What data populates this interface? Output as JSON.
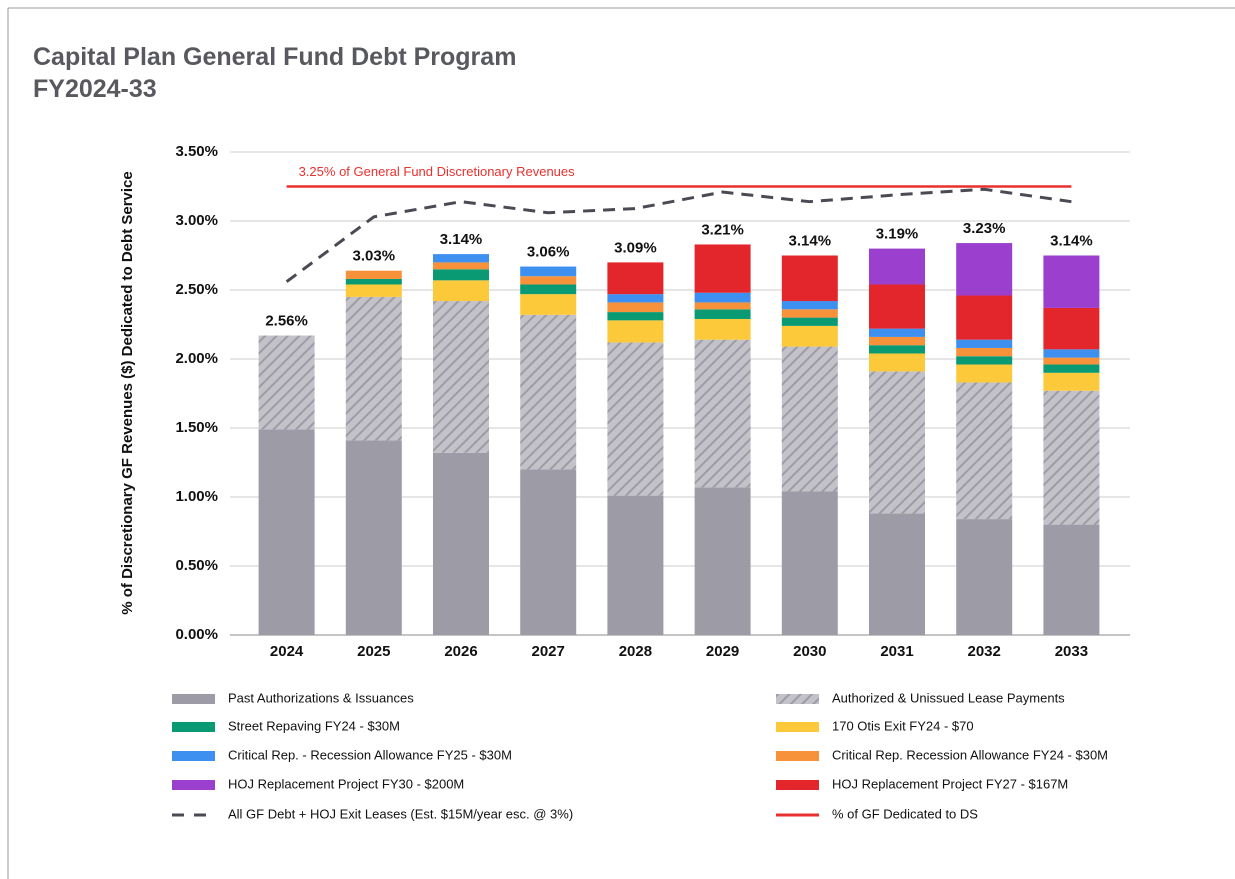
{
  "chart_data": {
    "type": "bar",
    "stacked": true,
    "title": [
      "Capital Plan General Fund Debt Program",
      "FY2024-33"
    ],
    "y_label": "% of Discretionary GF Revenues ($) Dedicated to Debt Service",
    "annotation": "3.25% of General Fund Discretionary Revenues",
    "categories": [
      "2024",
      "2025",
      "2026",
      "2027",
      "2028",
      "2029",
      "2030",
      "2031",
      "2032",
      "2033"
    ],
    "ylim": [
      0,
      3.5
    ],
    "yticks": [
      {
        "value": 0,
        "label": "0.00%"
      },
      {
        "value": 0.5,
        "label": "0.50%"
      },
      {
        "value": 1,
        "label": "1.00%"
      },
      {
        "value": 1.5,
        "label": "1.50%"
      },
      {
        "value": 2,
        "label": "2.00%"
      },
      {
        "value": 2.5,
        "label": "2.50%"
      },
      {
        "value": 3,
        "label": "3.00%"
      },
      {
        "value": 3.5,
        "label": "3.50%"
      }
    ],
    "grid": true,
    "series": [
      {
        "name": "Past Authorizations & Issuances",
        "color": "#9d9ca6",
        "values": [
          1.49,
          1.41,
          1.32,
          1.2,
          1.01,
          1.07,
          1.04,
          0.88,
          0.84,
          0.8
        ]
      },
      {
        "name": "Authorized & Unissued Lease Payments",
        "color": "#c3c2c9",
        "hatch": true,
        "values": [
          0.68,
          1.04,
          1.1,
          1.12,
          1.11,
          1.07,
          1.05,
          1.03,
          0.99,
          0.97
        ]
      },
      {
        "name": "170 Otis Exit FY24 - $70",
        "color": "#fcc93a",
        "values": [
          0,
          0.09,
          0.15,
          0.15,
          0.16,
          0.15,
          0.15,
          0.13,
          0.13,
          0.13
        ]
      },
      {
        "name": "Street Repaving FY24 - $30M",
        "color": "#0a9a73",
        "values": [
          0,
          0.04,
          0.08,
          0.07,
          0.06,
          0.07,
          0.06,
          0.06,
          0.06,
          0.06
        ]
      },
      {
        "name": "Critical Rep. Recession Allowance FY24 - $30M",
        "color": "#f7923a",
        "values": [
          0,
          0.06,
          0.05,
          0.06,
          0.07,
          0.05,
          0.06,
          0.06,
          0.06,
          0.05
        ]
      },
      {
        "name": "Critical Rep. - Recession Allowance FY25 - $30M",
        "color": "#3d8ff0",
        "values": [
          0,
          0,
          0.06,
          0.07,
          0.06,
          0.07,
          0.06,
          0.06,
          0.06,
          0.06
        ]
      },
      {
        "name": "HOJ Replacement Project FY27 - $167M",
        "color": "#e3262c",
        "values": [
          0,
          0,
          0,
          0,
          0.23,
          0.35,
          0.33,
          0.32,
          0.32,
          0.3
        ]
      },
      {
        "name": "HOJ Replacement Project FY30 - $200M",
        "color": "#9b3fcf",
        "values": [
          0,
          0,
          0,
          0,
          0,
          0,
          0,
          0.26,
          0.38,
          0.38
        ]
      },
      {
        "name": "All GF Debt + HOJ Exit Leases (Est. $15M/year esc. @ 3%)",
        "type": "line",
        "dashed": true,
        "color": "#4a4a55",
        "values": [
          2.56,
          3.03,
          3.14,
          3.06,
          3.09,
          3.21,
          3.14,
          3.19,
          3.23,
          3.14
        ],
        "value_labels": [
          "2.56%",
          "3.03%",
          "3.14%",
          "3.06%",
          "3.09%",
          "3.21%",
          "3.14%",
          "3.19%",
          "3.23%",
          "3.14%"
        ]
      },
      {
        "name": "% of GF Dedicated to DS",
        "type": "line",
        "color": "#e8312f",
        "values": [
          3.25,
          3.25,
          3.25,
          3.25,
          3.25,
          3.25,
          3.25,
          3.25,
          3.25,
          3.25
        ]
      }
    ]
  }
}
